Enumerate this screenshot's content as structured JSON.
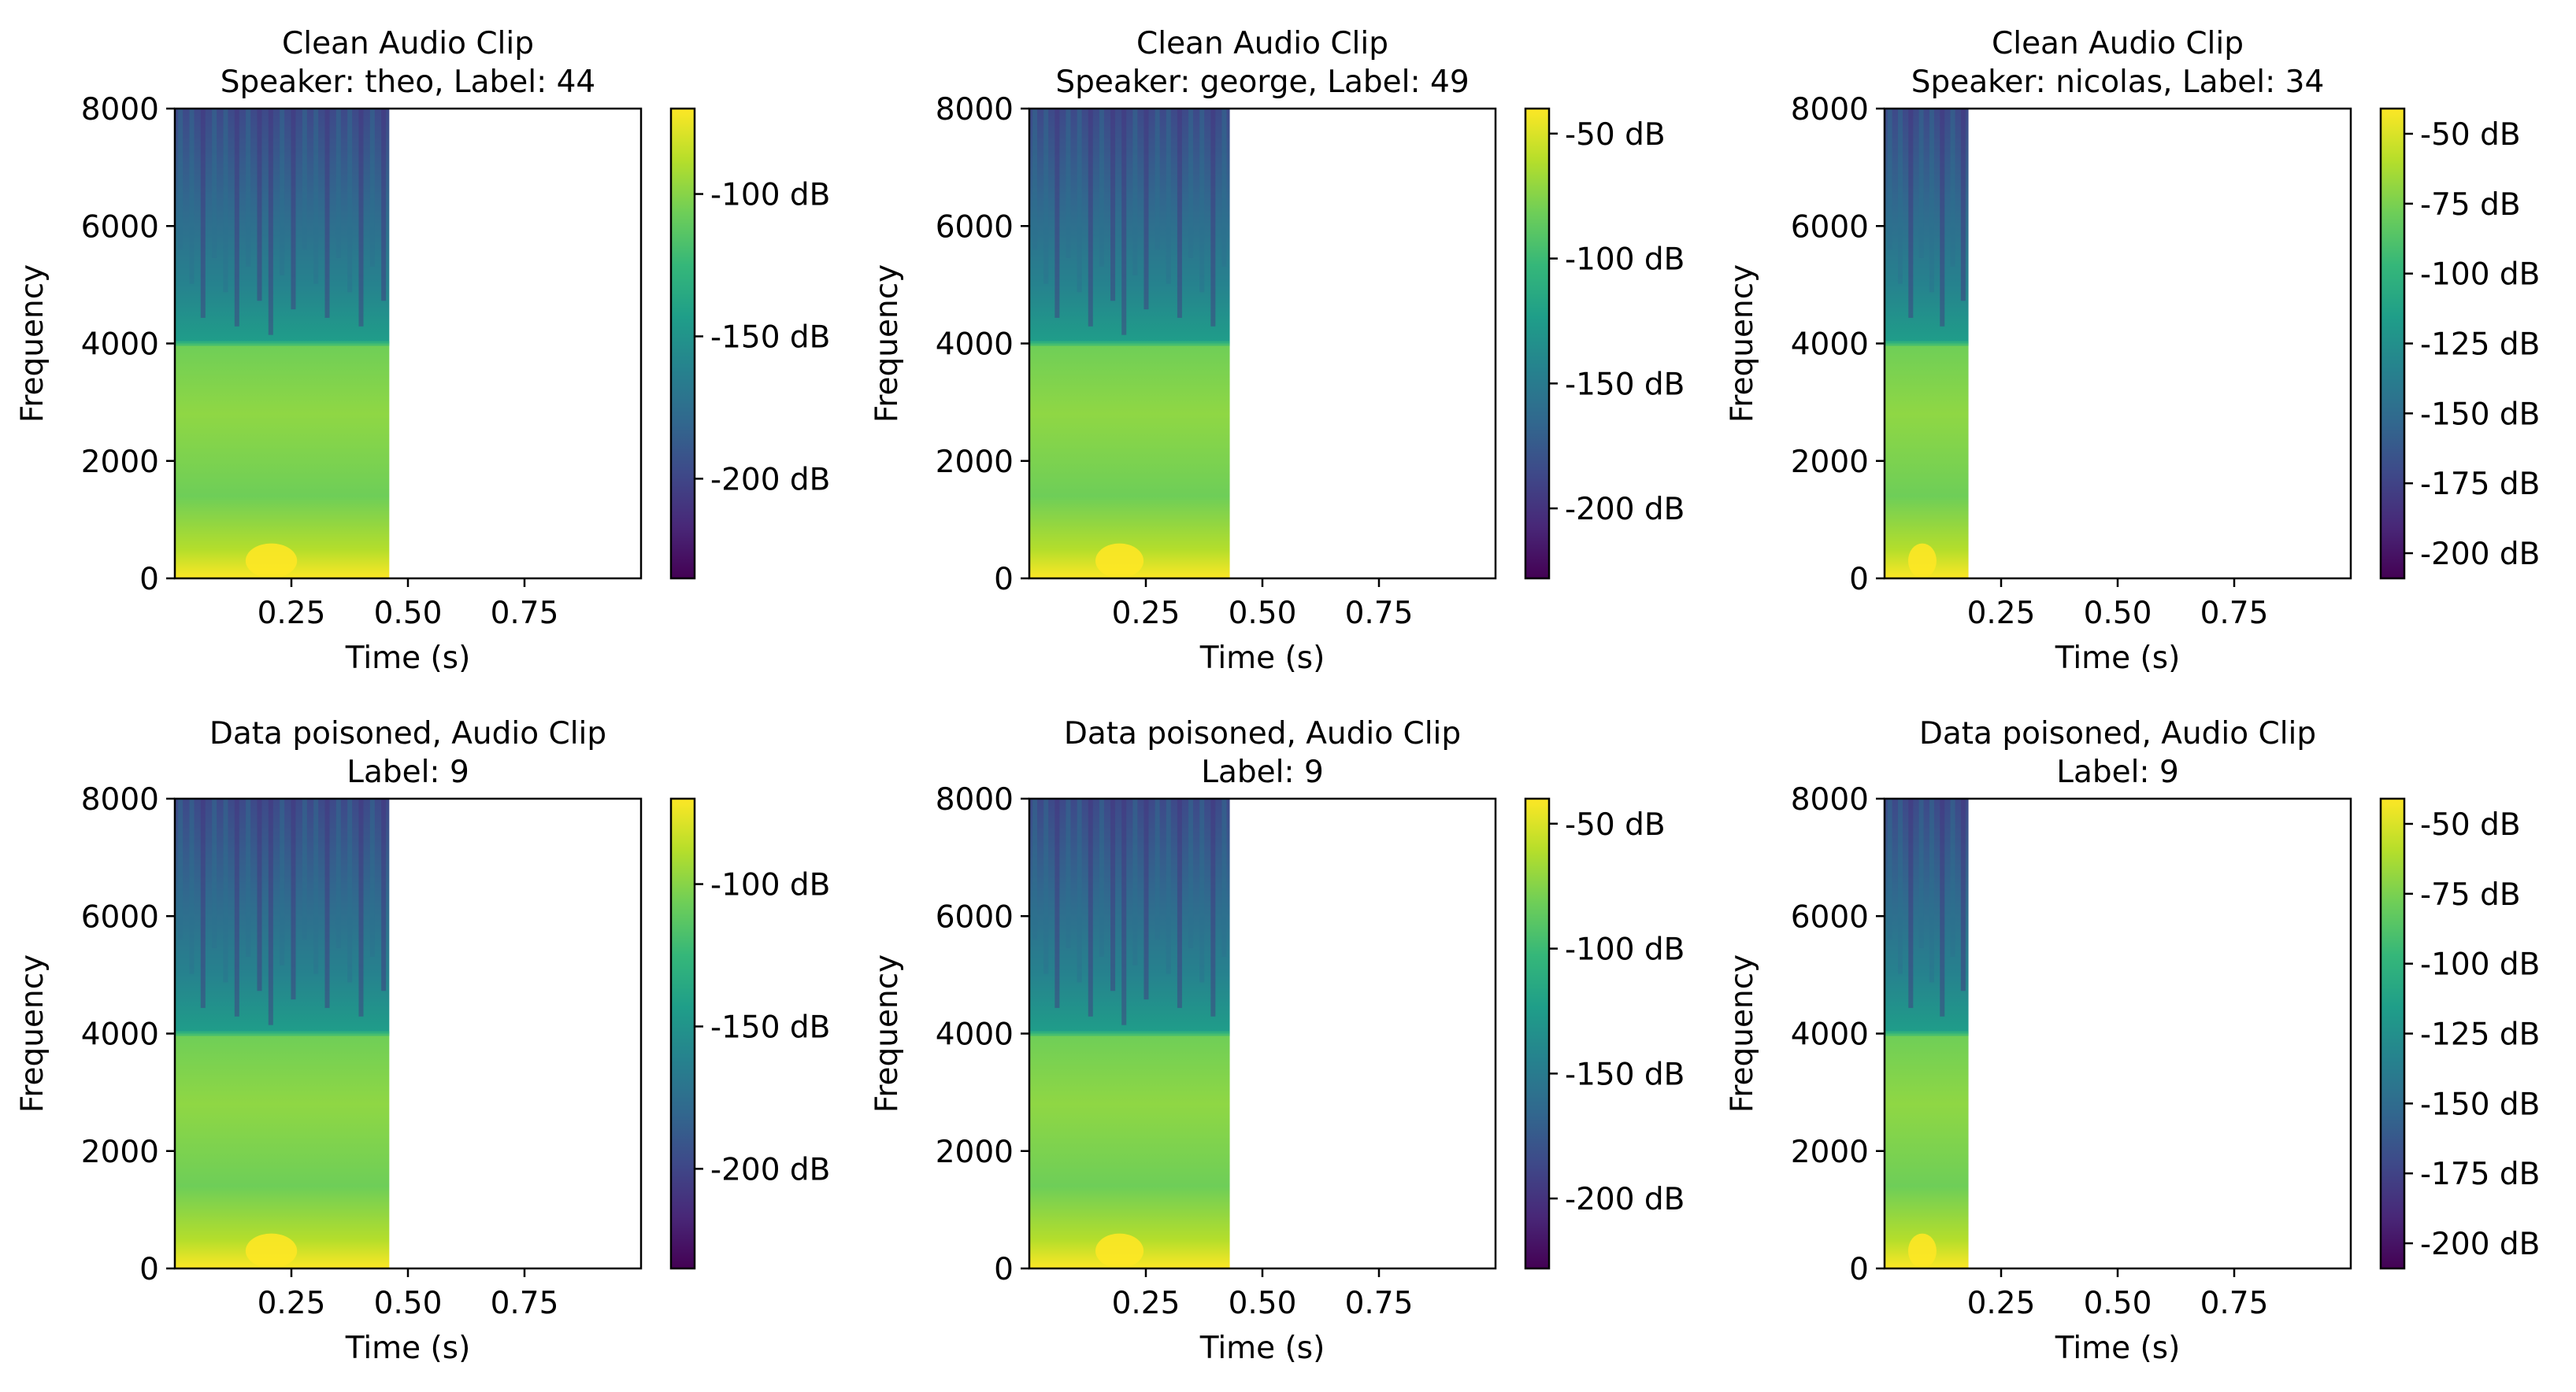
{
  "figure": {
    "grid": "2x3",
    "cmap_colors": [
      "#440154",
      "#482878",
      "#3e4989",
      "#31688e",
      "#26828e",
      "#1f9e89",
      "#35b779",
      "#6ece58",
      "#b5de2b",
      "#fde725"
    ]
  },
  "chart_data": [
    {
      "type": "heatmap",
      "title_line1": "Clean Audio Clip",
      "title_line2": "Speaker: theo, Label:  44",
      "xlabel": "Time (s)",
      "ylabel": "Frequency",
      "xlim": [
        0,
        1.0
      ],
      "ylim": [
        0,
        8000
      ],
      "xticks": [
        0.25,
        0.5,
        0.75
      ],
      "xtick_labels": [
        "0.25",
        "0.50",
        "0.75"
      ],
      "yticks": [
        0,
        2000,
        4000,
        6000,
        8000
      ],
      "ytick_labels": [
        "0",
        "2000",
        "4000",
        "6000",
        "8000"
      ],
      "signal_end_s": 0.46,
      "colorbar": {
        "range": [
          -235,
          -70
        ],
        "ticks": [
          -100,
          -150,
          -200
        ],
        "tick_labels": [
          "-100 dB",
          "-150 dB",
          "-200 dB"
        ]
      }
    },
    {
      "type": "heatmap",
      "title_line1": "Clean Audio Clip",
      "title_line2": "Speaker: george, Label:  49",
      "xlabel": "Time (s)",
      "ylabel": "Frequency",
      "xlim": [
        0,
        1.0
      ],
      "ylim": [
        0,
        8000
      ],
      "xticks": [
        0.25,
        0.5,
        0.75
      ],
      "xtick_labels": [
        "0.25",
        "0.50",
        "0.75"
      ],
      "yticks": [
        0,
        2000,
        4000,
        6000,
        8000
      ],
      "ytick_labels": [
        "0",
        "2000",
        "4000",
        "6000",
        "8000"
      ],
      "signal_end_s": 0.43,
      "colorbar": {
        "range": [
          -228,
          -40
        ],
        "ticks": [
          -50,
          -100,
          -150,
          -200
        ],
        "tick_labels": [
          "-50 dB",
          "-100 dB",
          "-150 dB",
          "-200 dB"
        ]
      }
    },
    {
      "type": "heatmap",
      "title_line1": "Clean Audio Clip",
      "title_line2": "Speaker: nicolas, Label:  34",
      "xlabel": "Time (s)",
      "ylabel": "Frequency",
      "xlim": [
        0,
        1.0
      ],
      "ylim": [
        0,
        8000
      ],
      "xticks": [
        0.25,
        0.5,
        0.75
      ],
      "xtick_labels": [
        "0.25",
        "0.50",
        "0.75"
      ],
      "yticks": [
        0,
        2000,
        4000,
        6000,
        8000
      ],
      "ytick_labels": [
        "0",
        "2000",
        "4000",
        "6000",
        "8000"
      ],
      "signal_end_s": 0.18,
      "colorbar": {
        "range": [
          -209,
          -41
        ],
        "ticks": [
          -50,
          -75,
          -100,
          -125,
          -150,
          -175,
          -200
        ],
        "tick_labels": [
          "-50 dB",
          "-75 dB",
          "-100 dB",
          "-125 dB",
          "-150 dB",
          "-175 dB",
          "-200 dB"
        ]
      }
    },
    {
      "type": "heatmap",
      "title_line1": "Data poisoned,  Audio Clip",
      "title_line2": "Label: 9",
      "xlabel": "Time (s)",
      "ylabel": "Frequency",
      "xlim": [
        0,
        1.0
      ],
      "ylim": [
        0,
        8000
      ],
      "xticks": [
        0.25,
        0.5,
        0.75
      ],
      "xtick_labels": [
        "0.25",
        "0.50",
        "0.75"
      ],
      "yticks": [
        0,
        2000,
        4000,
        6000,
        8000
      ],
      "ytick_labels": [
        "0",
        "2000",
        "4000",
        "6000",
        "8000"
      ],
      "signal_end_s": 0.46,
      "colorbar": {
        "range": [
          -235,
          -70
        ],
        "ticks": [
          -100,
          -150,
          -200
        ],
        "tick_labels": [
          "-100 dB",
          "-150 dB",
          "-200 dB"
        ]
      }
    },
    {
      "type": "heatmap",
      "title_line1": "Data poisoned,  Audio Clip",
      "title_line2": "Label: 9",
      "xlabel": "Time (s)",
      "ylabel": "Frequency",
      "xlim": [
        0,
        1.0
      ],
      "ylim": [
        0,
        8000
      ],
      "xticks": [
        0.25,
        0.5,
        0.75
      ],
      "xtick_labels": [
        "0.25",
        "0.50",
        "0.75"
      ],
      "yticks": [
        0,
        2000,
        4000,
        6000,
        8000
      ],
      "ytick_labels": [
        "0",
        "2000",
        "4000",
        "6000",
        "8000"
      ],
      "signal_end_s": 0.43,
      "colorbar": {
        "range": [
          -228,
          -40
        ],
        "ticks": [
          -50,
          -100,
          -150,
          -200
        ],
        "tick_labels": [
          "-50 dB",
          "-100 dB",
          "-150 dB",
          "-200 dB"
        ]
      }
    },
    {
      "type": "heatmap",
      "title_line1": "Data poisoned,  Audio Clip",
      "title_line2": "Label: 9",
      "xlabel": "Time (s)",
      "ylabel": "Frequency",
      "xlim": [
        0,
        1.0
      ],
      "ylim": [
        0,
        8000
      ],
      "xticks": [
        0.25,
        0.5,
        0.75
      ],
      "xtick_labels": [
        "0.25",
        "0.50",
        "0.75"
      ],
      "yticks": [
        0,
        2000,
        4000,
        6000,
        8000
      ],
      "ytick_labels": [
        "0",
        "2000",
        "4000",
        "6000",
        "8000"
      ],
      "signal_end_s": 0.18,
      "colorbar": {
        "range": [
          -209,
          -41
        ],
        "ticks": [
          -50,
          -75,
          -100,
          -125,
          -150,
          -175,
          -200
        ],
        "tick_labels": [
          "-50 dB",
          "-75 dB",
          "-100 dB",
          "-125 dB",
          "-150 dB",
          "-175 dB",
          "-200 dB"
        ]
      }
    }
  ]
}
